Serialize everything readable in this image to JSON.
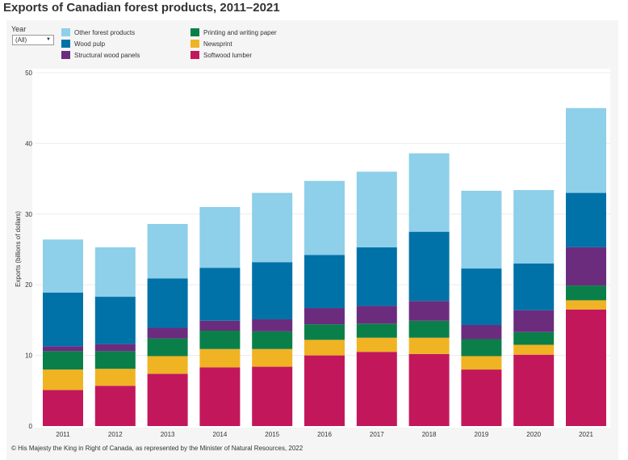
{
  "title": "Exports of Canadian forest products, 2011–2021",
  "filter": {
    "label": "Year",
    "value": "(All)"
  },
  "footer": "© His Majesty the King in Right of Canada, as represented by the Minister of Natural Resources, 2022",
  "chart_data": {
    "type": "bar",
    "stacked": true,
    "title": "Exports of Canadian forest products, 2011–2021",
    "ylabel": "Exports (billions of dollars)",
    "xlabel": "",
    "ylim": [
      0,
      50
    ],
    "yticks": [
      0,
      10,
      20,
      30,
      40,
      50
    ],
    "grid": true,
    "legend_position": "top",
    "categories": [
      "2011",
      "2012",
      "2013",
      "2014",
      "2015",
      "2016",
      "2017",
      "2018",
      "2019",
      "2020",
      "2021"
    ],
    "series": [
      {
        "name": "Softwood lumber",
        "color": "#c2185b",
        "values": [
          5.1,
          5.7,
          7.4,
          8.3,
          8.4,
          10.0,
          10.5,
          10.2,
          8.0,
          10.1,
          16.5
        ]
      },
      {
        "name": "Newsprint",
        "color": "#f0b323",
        "values": [
          2.9,
          2.4,
          2.5,
          2.6,
          2.5,
          2.2,
          2.0,
          2.3,
          1.9,
          1.4,
          1.3
        ]
      },
      {
        "name": "Printing and writing paper",
        "color": "#0b7f4a",
        "values": [
          2.6,
          2.5,
          2.5,
          2.6,
          2.5,
          2.2,
          2.0,
          2.4,
          2.4,
          1.8,
          2.1
        ]
      },
      {
        "name": "Structural wood panels",
        "color": "#6b2c7e",
        "values": [
          0.7,
          1.0,
          1.5,
          1.4,
          1.7,
          2.3,
          2.5,
          2.8,
          2.0,
          3.1,
          5.4
        ]
      },
      {
        "name": "Wood pulp",
        "color": "#0072a8",
        "values": [
          7.6,
          6.7,
          7.0,
          7.5,
          8.1,
          7.5,
          8.3,
          9.8,
          8.0,
          6.6,
          7.7
        ]
      },
      {
        "name": "Other forest products",
        "color": "#8ecfea",
        "values": [
          7.5,
          7.0,
          7.7,
          8.6,
          9.8,
          10.5,
          10.7,
          11.1,
          11.0,
          10.4,
          12.0
        ]
      }
    ],
    "legend_order": [
      "Other forest products",
      "Wood pulp",
      "Structural wood panels",
      "Printing and writing paper",
      "Newsprint",
      "Softwood lumber"
    ]
  }
}
